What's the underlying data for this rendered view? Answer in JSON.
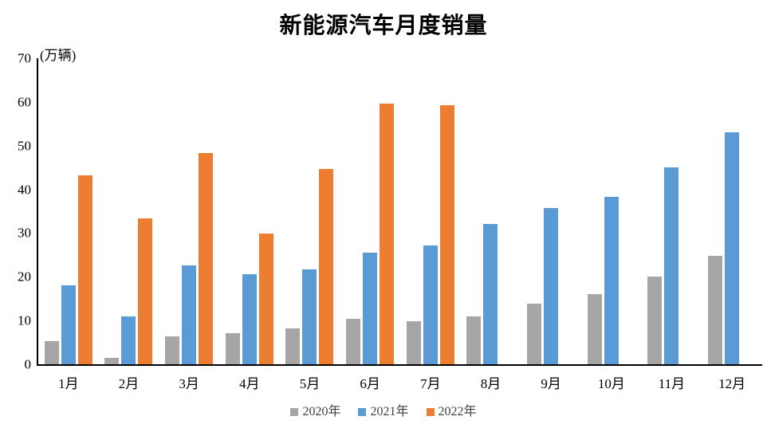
{
  "title": "新能源汽车月度销量",
  "unit_label": "(万辆)",
  "colors": {
    "series_2020": "#A6A6A6",
    "series_2021": "#5B9BD5",
    "series_2022": "#ED7D31",
    "axis": "#000000",
    "legend_text": "#404040",
    "background": "#FFFFFF"
  },
  "chart_data": {
    "type": "bar",
    "title": "新能源汽车月度销量",
    "unit": "万辆",
    "categories": [
      "1月",
      "2月",
      "3月",
      "4月",
      "5月",
      "6月",
      "7月",
      "8月",
      "9月",
      "10月",
      "11月",
      "12月"
    ],
    "series": [
      {
        "name": "2020年",
        "color": "#A6A6A6",
        "values": [
          5.2,
          1.5,
          6.4,
          7.2,
          8.2,
          10.4,
          9.8,
          10.9,
          13.8,
          16.0,
          20.0,
          24.8
        ]
      },
      {
        "name": "2021年",
        "color": "#5B9BD5",
        "values": [
          18.0,
          11.0,
          22.6,
          20.6,
          21.7,
          25.6,
          27.1,
          32.1,
          35.7,
          38.3,
          45.0,
          53.1
        ]
      },
      {
        "name": "2022年",
        "color": "#ED7D31",
        "values": [
          43.2,
          33.4,
          48.4,
          29.9,
          44.7,
          59.6,
          59.3,
          null,
          null,
          null,
          null,
          null
        ]
      }
    ],
    "ylim": [
      0,
      70
    ],
    "ytick_interval": 10,
    "ytick_labels": [
      "0",
      "10",
      "20",
      "30",
      "40",
      "50",
      "60",
      "70"
    ],
    "xlabel": "",
    "ylabel": "(万辆)",
    "grid": false,
    "legend_position": "bottom"
  }
}
